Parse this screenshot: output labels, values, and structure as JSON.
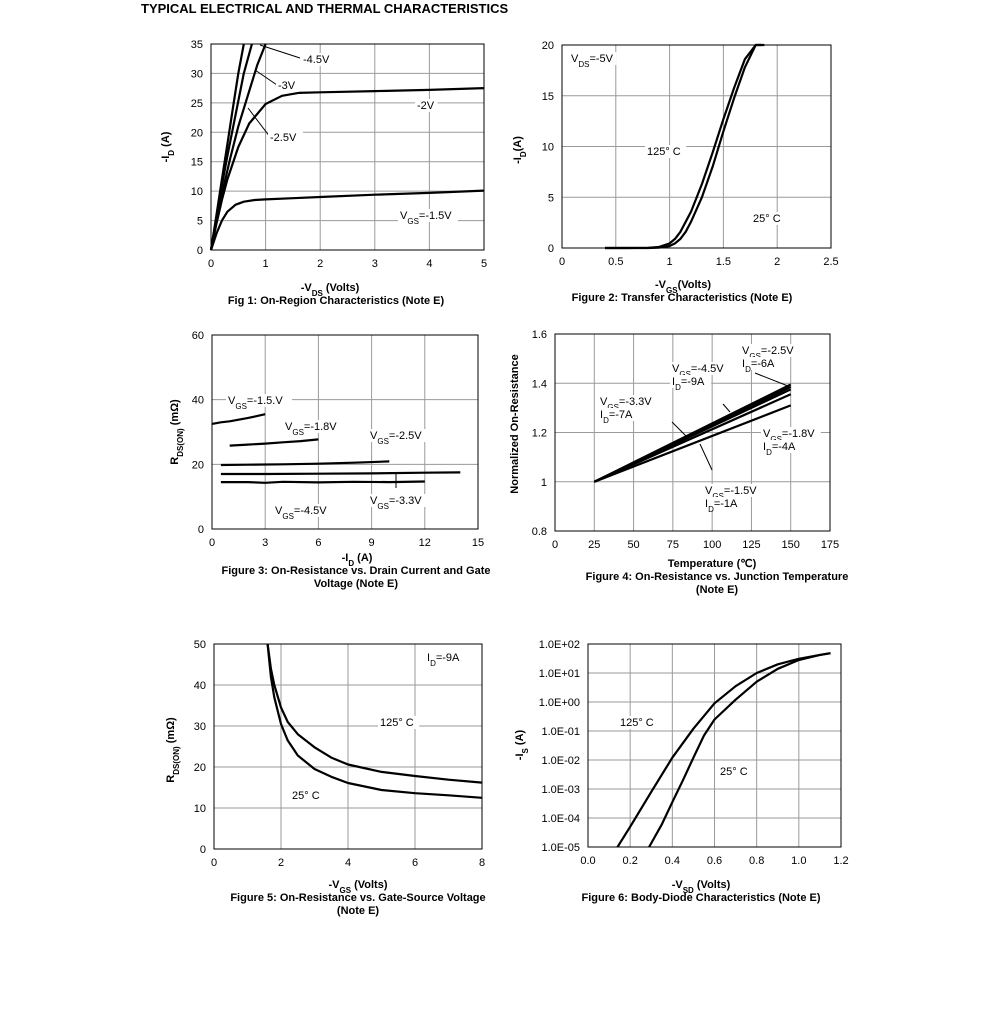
{
  "page_title": "TYPICAL ELECTRICAL AND THERMAL CHARACTERISTICS",
  "captions": {
    "c1": "Fig 1: On-Region Characteristics (Note E)",
    "c2": "Figure 2: Transfer Characteristics (Note E)",
    "c3": "Figure 3: On-Resistance vs. Drain Current and Gate Voltage (Note E)",
    "c4": "Figure 4: On-Resistance vs. Junction Temperature (Note E)",
    "c5": "Figure 5: On-Resistance vs. Gate-Source Voltage (Note E)",
    "c6": "Figure 6: Body-Diode Characteristics (Note E)"
  },
  "chart_data": [
    {
      "type": "line",
      "title": "Fig 1: On-Region Characteristics (Note E)",
      "xlabel": "-VDS (Volts)",
      "ylabel": "-ID (A)",
      "xlim": [
        0,
        5
      ],
      "ylim": [
        0,
        35
      ],
      "xticks": [
        0,
        1,
        2,
        3,
        4,
        5
      ],
      "yticks": [
        0,
        5,
        10,
        15,
        20,
        25,
        30,
        35
      ],
      "grid": true,
      "series": [
        {
          "name": "-4.5V",
          "x": [
            0,
            0.1,
            0.2,
            0.3,
            0.4,
            0.5,
            0.6
          ],
          "y": [
            0,
            6,
            12,
            18,
            24,
            30,
            35
          ]
        },
        {
          "name": "-3V",
          "x": [
            0,
            0.1,
            0.2,
            0.3,
            0.45,
            0.6,
            0.75
          ],
          "y": [
            0,
            5.5,
            11,
            16,
            23,
            30,
            35
          ]
        },
        {
          "name": "-2.5V",
          "x": [
            0,
            0.1,
            0.2,
            0.35,
            0.5,
            0.7,
            0.85,
            1.0
          ],
          "y": [
            0,
            5,
            9.5,
            15.5,
            21,
            27,
            31.5,
            35
          ]
        },
        {
          "name": "-2V",
          "x": [
            0,
            0.1,
            0.2,
            0.3,
            0.5,
            0.7,
            1.0,
            1.3,
            1.6,
            2,
            3,
            4,
            5
          ],
          "y": [
            0,
            4.5,
            8.5,
            12,
            17.5,
            21.5,
            24.8,
            26.2,
            26.7,
            26.8,
            27,
            27.2,
            27.5
          ]
        },
        {
          "name": "VGS=-1.5V",
          "x": [
            0,
            0.1,
            0.2,
            0.3,
            0.45,
            0.6,
            0.8,
            1.0,
            1.5,
            2,
            3,
            4,
            5
          ],
          "y": [
            0,
            2.8,
            5,
            6.5,
            7.7,
            8.2,
            8.5,
            8.6,
            8.8,
            9,
            9.4,
            9.7,
            10.1
          ]
        }
      ],
      "labels": [
        "-4.5V",
        "-3V",
        "-2.5V",
        "-2V",
        "VGS=-1.5V"
      ]
    },
    {
      "type": "line",
      "title": "Figure 2: Transfer Characteristics (Note E)",
      "xlabel": "-VGS(Volts)",
      "ylabel": "-ID(A)",
      "xlim": [
        0,
        2.5
      ],
      "ylim": [
        0,
        20
      ],
      "xticks": [
        "0",
        "0.5",
        "1",
        "1.5",
        "2",
        "2.5"
      ],
      "yticks": [
        0,
        5,
        10,
        15,
        20
      ],
      "grid": true,
      "annotation": "VDS=-5V",
      "series": [
        {
          "name": "125°C",
          "x": [
            0.4,
            0.6,
            0.8,
            0.9,
            1.0,
            1.05,
            1.1,
            1.2,
            1.3,
            1.4,
            1.5,
            1.6,
            1.7,
            1.8,
            1.85
          ],
          "y": [
            0,
            0,
            0.02,
            0.1,
            0.45,
            0.9,
            1.6,
            3.6,
            6.3,
            9.4,
            12.7,
            15.8,
            18.6,
            20,
            20
          ]
        },
        {
          "name": "25°C",
          "x": [
            0.4,
            0.8,
            0.9,
            1.0,
            1.05,
            1.1,
            1.15,
            1.2,
            1.3,
            1.4,
            1.5,
            1.6,
            1.7,
            1.8,
            1.88
          ],
          "y": [
            0,
            0,
            0.03,
            0.2,
            0.45,
            0.9,
            1.6,
            2.6,
            5,
            8,
            11.5,
            14.8,
            17.8,
            20,
            20
          ]
        }
      ],
      "labels": [
        "125° C",
        "25° C"
      ]
    },
    {
      "type": "line",
      "title": "Figure 3: On-Resistance vs. Drain Current and Gate Voltage (Note E)",
      "xlabel": "-ID (A)",
      "ylabel": "RDS(ON) (mΩ)",
      "xlim": [
        0,
        15
      ],
      "ylim": [
        0,
        60
      ],
      "xticks": [
        0,
        3,
        6,
        9,
        12,
        15
      ],
      "yticks": [
        0,
        20,
        40,
        60
      ],
      "grid": true,
      "series": [
        {
          "name": "VGS=-1.5V",
          "x": [
            0,
            0.5,
            1,
            1.5,
            2,
            2.5,
            3
          ],
          "y": [
            32.5,
            33,
            33.3,
            33.8,
            34.3,
            34.9,
            35.5
          ]
        },
        {
          "name": "VGS=-1.8V",
          "x": [
            1,
            2,
            3,
            4,
            5,
            6
          ],
          "y": [
            25.8,
            26.1,
            26.4,
            26.8,
            27.2,
            27.7
          ]
        },
        {
          "name": "VGS=-2.5V",
          "x": [
            0.5,
            2,
            4,
            6,
            8,
            10
          ],
          "y": [
            19.8,
            19.9,
            20,
            20.2,
            20.5,
            20.9
          ]
        },
        {
          "name": "VGS=-3.3V",
          "x": [
            0.5,
            3,
            6,
            9,
            12,
            14
          ],
          "y": [
            17,
            17,
            17.1,
            17.2,
            17.4,
            17.5
          ]
        },
        {
          "name": "VGS=-4.5V",
          "x": [
            0.5,
            2,
            3,
            4,
            6,
            8,
            10,
            12
          ],
          "y": [
            14.5,
            14.5,
            14.3,
            14.6,
            14.4,
            14.6,
            14.5,
            14.7
          ]
        }
      ],
      "labels": [
        "VGS=-1.5.V",
        "VGS=-1.8V",
        "VGS=-2.5V",
        "VGS=-3.3V",
        "VGS=-4.5V"
      ]
    },
    {
      "type": "line",
      "title": "Figure 4: On-Resistance vs. Junction Temperature (Note E)",
      "xlabel": "Temperature (℃)",
      "ylabel": "Normalized On-Resistance",
      "xlim": [
        0,
        175
      ],
      "ylim": [
        0.8,
        1.6
      ],
      "xticks": [
        0,
        25,
        50,
        75,
        100,
        125,
        150,
        175
      ],
      "yticks": [
        "0.8",
        "1",
        "1.2",
        "1.4",
        "1.6"
      ],
      "grid": true,
      "series": [
        {
          "name": "VGS=-2.5V ID=-6A",
          "x": [
            25,
            150
          ],
          "y": [
            1,
            1.385
          ]
        },
        {
          "name": "VGS=-4.5V ID=-9A",
          "x": [
            25,
            150
          ],
          "y": [
            1,
            1.395
          ]
        },
        {
          "name": "VGS=-3.3V ID=-7A",
          "x": [
            25,
            150
          ],
          "y": [
            1,
            1.375
          ]
        },
        {
          "name": "VGS=-1.8V ID=-4A",
          "x": [
            25,
            150
          ],
          "y": [
            1,
            1.355
          ]
        },
        {
          "name": "VGS=-1.5V ID=-1A",
          "x": [
            25,
            150
          ],
          "y": [
            1,
            1.31
          ]
        }
      ],
      "labels": [
        "VGS=-2.5V",
        "ID=-6A",
        "VGS=-4.5V",
        "ID=-9A",
        "VGS=-3.3V",
        "ID=-7A",
        "VGS=-1.8V",
        "ID=-4A",
        "VGS=-1.5V",
        "ID=-1A"
      ]
    },
    {
      "type": "line",
      "title": "Figure 5: On-Resistance vs. Gate-Source Voltage (Note E)",
      "xlabel": "-VGS (Volts)",
      "ylabel": "RDS(ON) (mΩ)",
      "xlim": [
        0,
        8
      ],
      "ylim": [
        0,
        50
      ],
      "xticks": [
        0,
        2,
        4,
        6,
        8
      ],
      "yticks": [
        0,
        10,
        20,
        30,
        40,
        50
      ],
      "grid": true,
      "annotation": "ID=-9A",
      "series": [
        {
          "name": "125°C",
          "x": [
            1.6,
            1.7,
            1.8,
            2,
            2.2,
            2.5,
            3,
            3.5,
            4,
            5,
            6,
            7,
            8
          ],
          "y": [
            50,
            44,
            40,
            34.5,
            31,
            28,
            24.8,
            22.3,
            20.6,
            18.8,
            17.8,
            16.9,
            16.2
          ]
        },
        {
          "name": "25°C",
          "x": [
            1.6,
            1.7,
            1.8,
            2,
            2.2,
            2.5,
            3,
            3.5,
            4,
            5,
            6,
            7,
            8
          ],
          "y": [
            50,
            42,
            37,
            30.5,
            26.5,
            22.8,
            19.5,
            17.6,
            16.1,
            14.4,
            13.6,
            13.1,
            12.5
          ]
        }
      ],
      "labels": [
        "125° C",
        "25° C"
      ]
    },
    {
      "type": "line",
      "title": "Figure 6: Body-Diode Characteristics (Note E)",
      "xlabel": "-VSD (Volts)",
      "ylabel": "-IS (A)",
      "yscale": "log",
      "xlim": [
        0,
        1.2
      ],
      "ylim": [
        1e-05,
        100
      ],
      "xticks": [
        "0.0",
        "0.2",
        "0.4",
        "0.6",
        "0.8",
        "1.0",
        "1.2"
      ],
      "yticks": [
        "1.0E-05",
        "1.0E-04",
        "1.0E-03",
        "1.0E-02",
        "1.0E-01",
        "1.0E+00",
        "1.0E+01",
        "1.0E+02"
      ],
      "grid": true,
      "series": [
        {
          "name": "125°C",
          "x": [
            0.14,
            0.2,
            0.3,
            0.4,
            0.5,
            0.6,
            0.7,
            0.8,
            0.9,
            1.0,
            1.1,
            1.15
          ],
          "y": [
            1e-05,
            5e-05,
            0.0008,
            0.012,
            0.12,
            0.9,
            3.5,
            10,
            20,
            31,
            42,
            48
          ]
        },
        {
          "name": "25°C",
          "x": [
            0.29,
            0.35,
            0.4,
            0.45,
            0.5,
            0.55,
            0.6,
            0.7,
            0.8,
            0.9,
            1.0,
            1.1,
            1.15
          ],
          "y": [
            1e-05,
            6e-05,
            0.00035,
            0.002,
            0.012,
            0.07,
            0.25,
            1.2,
            5,
            14,
            28,
            42,
            48
          ]
        }
      ],
      "labels": [
        "125° C",
        "25° C"
      ]
    }
  ]
}
